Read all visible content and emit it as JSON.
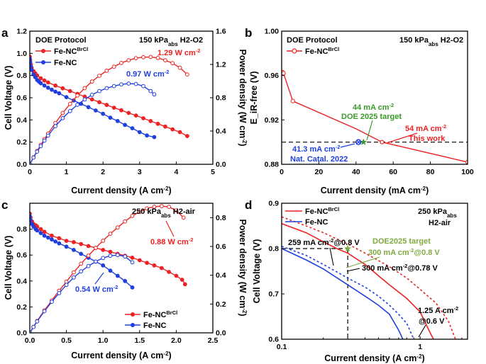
{
  "colors": {
    "red": "#ee2222",
    "blue": "#1f3fe0",
    "green": "#3a9a2a",
    "olive": "#7faa3f",
    "black": "#000000"
  },
  "chart_data": [
    {
      "panel": "a",
      "type": "line",
      "title": "DOE Protocol",
      "condition": {
        "pressure": "150 kPa",
        "sub": "abs",
        "gas": "H2-O2"
      },
      "xlabel": "Current density (A cm-2)",
      "ylabel": "Cell Voltage (V)",
      "y2label": "Power density (W cm-2)",
      "xlim": [
        0,
        5
      ],
      "ylim": [
        0,
        1.2
      ],
      "y2lim": [
        0,
        1.6
      ],
      "xticks": [
        "0",
        "1",
        "2",
        "3",
        "4",
        "5"
      ],
      "yticks": [
        "0.0",
        "0.2",
        "0.4",
        "0.6",
        "0.8",
        "1.0",
        "1.2"
      ],
      "y2ticks": [
        "0.0",
        "0.4",
        "0.8",
        "1.2",
        "1.6"
      ],
      "legend": [
        {
          "name": "Fe-NC",
          "sup": "BrCl",
          "color": "red"
        },
        {
          "name": "Fe-NC",
          "sup": "",
          "color": "blue"
        }
      ],
      "annotations": [
        {
          "text": "1.29 W cm-2",
          "color": "red"
        },
        {
          "text": "0.97 W cm-2",
          "color": "blue"
        }
      ],
      "series": [
        {
          "name": "Fe-NCBrCl voltage",
          "axis": "left",
          "color": "red",
          "filled": true,
          "x": [
            0,
            0.01,
            0.03,
            0.05,
            0.1,
            0.15,
            0.2,
            0.3,
            0.4,
            0.5,
            0.7,
            0.9,
            1.1,
            1.3,
            1.5,
            1.7,
            1.9,
            2.1,
            2.3,
            2.5,
            2.7,
            2.9,
            3.1,
            3.3,
            3.5,
            3.7,
            3.9,
            4.1,
            4.3
          ],
          "y": [
            0.97,
            0.94,
            0.9,
            0.87,
            0.84,
            0.82,
            0.8,
            0.775,
            0.755,
            0.738,
            0.71,
            0.685,
            0.66,
            0.635,
            0.61,
            0.585,
            0.56,
            0.535,
            0.51,
            0.487,
            0.463,
            0.44,
            0.415,
            0.39,
            0.365,
            0.34,
            0.315,
            0.29,
            0.255
          ]
        },
        {
          "name": "Fe-NC voltage",
          "axis": "left",
          "color": "blue",
          "filled": true,
          "x": [
            0,
            0.01,
            0.03,
            0.05,
            0.1,
            0.15,
            0.2,
            0.25,
            0.3,
            0.4,
            0.5,
            0.6,
            0.7,
            0.8,
            1.0,
            1.2,
            1.4,
            1.6,
            1.8,
            2.0,
            2.2,
            2.4,
            2.6,
            2.8,
            3.0,
            3.2,
            3.4
          ],
          "y": [
            0.95,
            0.92,
            0.88,
            0.85,
            0.81,
            0.785,
            0.76,
            0.745,
            0.73,
            0.71,
            0.69,
            0.672,
            0.655,
            0.64,
            0.605,
            0.575,
            0.545,
            0.515,
            0.485,
            0.455,
            0.42,
            0.39,
            0.355,
            0.325,
            0.29,
            0.26,
            0.245
          ]
        },
        {
          "name": "Fe-NCBrCl power",
          "axis": "right",
          "color": "red",
          "filled": false,
          "x": [
            0,
            0.1,
            0.2,
            0.3,
            0.4,
            0.5,
            0.7,
            0.9,
            1.1,
            1.3,
            1.5,
            1.7,
            1.9,
            2.1,
            2.3,
            2.5,
            2.7,
            2.9,
            3.1,
            3.3,
            3.5,
            3.7,
            3.9,
            4.1,
            4.3
          ],
          "y": [
            0,
            0.084,
            0.16,
            0.233,
            0.302,
            0.369,
            0.497,
            0.617,
            0.726,
            0.826,
            0.915,
            0.995,
            1.064,
            1.124,
            1.173,
            1.218,
            1.25,
            1.276,
            1.287,
            1.29,
            1.278,
            1.25,
            1.215,
            1.16,
            1.08
          ]
        },
        {
          "name": "Fe-NC power",
          "axis": "right",
          "color": "blue",
          "filled": false,
          "x": [
            0,
            0.1,
            0.2,
            0.3,
            0.4,
            0.5,
            0.7,
            0.9,
            1.1,
            1.3,
            1.5,
            1.7,
            1.9,
            2.1,
            2.3,
            2.5,
            2.7,
            2.9,
            3.1,
            3.3,
            3.4
          ],
          "y": [
            0,
            0.081,
            0.152,
            0.219,
            0.284,
            0.345,
            0.459,
            0.555,
            0.64,
            0.716,
            0.78,
            0.835,
            0.88,
            0.915,
            0.94,
            0.96,
            0.97,
            0.965,
            0.94,
            0.88,
            0.84
          ]
        }
      ]
    },
    {
      "panel": "b",
      "type": "line",
      "title": "DOE Protocol",
      "condition": {
        "pressure": "150 kPa",
        "sub": "abs",
        "gas": "H2-O2"
      },
      "xlabel": "Current density (mA cm-2)",
      "ylabel": "E_iR-free (V)",
      "xlim": [
        0,
        100
      ],
      "ylim": [
        0.88,
        1.0
      ],
      "xticks": [
        "0",
        "20",
        "40",
        "60",
        "80",
        "100"
      ],
      "yticks": [
        "0.88",
        "0.92",
        "0.96",
        "1.00"
      ],
      "reference_line_y": 0.9,
      "legend": [
        {
          "name": "Fe-NC",
          "sup": "BrCl",
          "color": "red"
        }
      ],
      "series": [
        {
          "name": "Fe-NCBrCl",
          "color": "red",
          "x": [
            0.5,
            1,
            6,
            40,
            54,
            100
          ],
          "y": [
            0.963,
            0.962,
            0.937,
            0.912,
            0.9,
            0.882
          ]
        }
      ],
      "points": [
        {
          "label": "44 mA cm-2 / DOE 2025 target",
          "x": 44,
          "y": 0.9,
          "marker": "star",
          "color": "green"
        },
        {
          "label": "41.3 mA cm-2 / Nat. Catal. 2022",
          "x": 41.3,
          "y": 0.9,
          "marker": "circle-x",
          "color": "blue"
        },
        {
          "label": "54 mA cm-2 / This work",
          "x": 54,
          "y": 0.9,
          "marker": "dot",
          "color": "red"
        }
      ],
      "annotations": [
        {
          "line1": "44 mA cm-2",
          "line2": "DOE 2025 target",
          "color": "green"
        },
        {
          "line1": "54 mA cm-2",
          "line2": "This work",
          "color": "red"
        },
        {
          "line1": "41.3 mA cm-2",
          "line2": "Nat. Catal. 2022",
          "color": "blue"
        }
      ]
    },
    {
      "panel": "c",
      "type": "line",
      "condition": {
        "pressure": "250 kPa",
        "sub": "abs",
        "gas": "H2-air"
      },
      "xlabel": "Current density (A cm-2)",
      "ylabel": "Cell Voltage (V)",
      "y2label": "Power density (W cm-2)",
      "xlim": [
        0,
        2.5
      ],
      "ylim": [
        0,
        1.0
      ],
      "y2lim": [
        0,
        0.9
      ],
      "xticks": [
        "0.0",
        "0.5",
        "1.0",
        "1.5",
        "2.0",
        "2.5"
      ],
      "yticks": [
        "0.0",
        "0.2",
        "0.4",
        "0.6",
        "0.8"
      ],
      "y2ticks": [
        "0.0",
        "0.2",
        "0.4",
        "0.6",
        "0.8"
      ],
      "legend": [
        {
          "name": "Fe-NC",
          "sup": "BrCl",
          "color": "red"
        },
        {
          "name": "Fe-NC",
          "sup": "",
          "color": "blue"
        }
      ],
      "annotations": [
        {
          "text": "0.88 W cm-2",
          "color": "red"
        },
        {
          "text": "0.54 W cm-2",
          "color": "blue"
        }
      ],
      "series": [
        {
          "name": "Fe-NCBrCl voltage",
          "axis": "left",
          "color": "red",
          "filled": true,
          "x": [
            0,
            0.01,
            0.03,
            0.05,
            0.08,
            0.1,
            0.15,
            0.2,
            0.3,
            0.4,
            0.5,
            0.6,
            0.7,
            0.8,
            0.9,
            1.0,
            1.1,
            1.2,
            1.3,
            1.4,
            1.5,
            1.6,
            1.7,
            1.8,
            1.9,
            2.0,
            2.08,
            2.12
          ],
          "y": [
            0.92,
            0.89,
            0.86,
            0.84,
            0.83,
            0.82,
            0.8,
            0.78,
            0.75,
            0.73,
            0.71,
            0.7,
            0.685,
            0.67,
            0.655,
            0.64,
            0.625,
            0.61,
            0.595,
            0.58,
            0.56,
            0.54,
            0.52,
            0.5,
            0.47,
            0.44,
            0.41,
            0.375
          ]
        },
        {
          "name": "Fe-NC voltage",
          "axis": "left",
          "color": "blue",
          "filled": true,
          "x": [
            0,
            0.01,
            0.03,
            0.05,
            0.08,
            0.1,
            0.15,
            0.2,
            0.25,
            0.3,
            0.35,
            0.4,
            0.5,
            0.6,
            0.7,
            0.8,
            0.9,
            1.0,
            1.1,
            1.2,
            1.3,
            1.4
          ],
          "y": [
            0.9,
            0.87,
            0.84,
            0.82,
            0.8,
            0.79,
            0.77,
            0.75,
            0.735,
            0.72,
            0.705,
            0.69,
            0.665,
            0.64,
            0.61,
            0.58,
            0.55,
            0.52,
            0.48,
            0.44,
            0.4,
            0.35
          ]
        },
        {
          "name": "Fe-NCBrCl power",
          "axis": "right",
          "color": "red",
          "filled": false,
          "x": [
            0,
            0.05,
            0.1,
            0.2,
            0.3,
            0.4,
            0.5,
            0.6,
            0.7,
            0.8,
            0.9,
            1.0,
            1.1,
            1.2,
            1.3,
            1.4,
            1.5,
            1.6,
            1.7,
            1.8,
            1.9,
            2.0,
            2.1
          ],
          "y": [
            0,
            0.042,
            0.082,
            0.156,
            0.225,
            0.292,
            0.355,
            0.42,
            0.48,
            0.536,
            0.59,
            0.64,
            0.688,
            0.732,
            0.774,
            0.812,
            0.84,
            0.864,
            0.876,
            0.88,
            0.875,
            0.85,
            0.8
          ]
        },
        {
          "name": "Fe-NC power",
          "axis": "right",
          "color": "blue",
          "filled": false,
          "x": [
            0,
            0.05,
            0.1,
            0.2,
            0.3,
            0.4,
            0.5,
            0.6,
            0.7,
            0.8,
            0.9,
            1.0,
            1.1,
            1.2,
            1.3,
            1.4
          ],
          "y": [
            0,
            0.041,
            0.079,
            0.15,
            0.216,
            0.276,
            0.333,
            0.384,
            0.427,
            0.464,
            0.495,
            0.52,
            0.535,
            0.54,
            0.53,
            0.49
          ]
        }
      ]
    },
    {
      "panel": "d",
      "type": "line",
      "xscale": "log",
      "condition": {
        "pressure": "250 kPa",
        "sub": "abs",
        "gas": "H2-air"
      },
      "xlabel": "Current density (A cm-2)",
      "ylabel": "Cell Voltage (V)",
      "xlim": [
        0.1,
        2.2
      ],
      "ylim": [
        0.6,
        0.9
      ],
      "xticks": [
        "0.1",
        "1"
      ],
      "yticks": [
        "0.6",
        "0.7",
        "0.8",
        "0.9"
      ],
      "reference_line_y": 0.8,
      "legend": [
        {
          "name": "Fe-NC",
          "sup": "BrCl",
          "color": "red"
        },
        {
          "name": "Fe-NC",
          "sup": "",
          "color": "blue"
        }
      ],
      "series": [
        {
          "name": "Fe-NCBrCl",
          "color": "red",
          "dash": false,
          "x": [
            0.1,
            0.15,
            0.2,
            0.25,
            0.3,
            0.4,
            0.5,
            0.6,
            0.8,
            1.0,
            1.2,
            1.25
          ],
          "y": [
            0.855,
            0.835,
            0.815,
            0.8,
            0.79,
            0.765,
            0.74,
            0.72,
            0.69,
            0.66,
            0.61,
            0.6
          ]
        },
        {
          "name": "Fe-NCBrCl (iR-free)",
          "color": "red",
          "dash": true,
          "x": [
            0.1,
            0.15,
            0.2,
            0.3,
            0.4,
            0.6,
            0.8,
            1.0,
            1.3,
            1.6,
            1.8
          ],
          "y": [
            0.87,
            0.85,
            0.835,
            0.81,
            0.79,
            0.76,
            0.735,
            0.71,
            0.68,
            0.64,
            0.6
          ]
        },
        {
          "name": "Fe-NC",
          "color": "blue",
          "dash": false,
          "x": [
            0.1,
            0.15,
            0.2,
            0.3,
            0.4,
            0.5,
            0.6,
            0.7,
            0.75
          ],
          "y": [
            0.8,
            0.775,
            0.755,
            0.72,
            0.695,
            0.675,
            0.655,
            0.62,
            0.6
          ]
        },
        {
          "name": "Fe-NC (iR-free)",
          "color": "blue",
          "dash": true,
          "x": [
            0.1,
            0.15,
            0.2,
            0.3,
            0.4,
            0.5,
            0.6,
            0.7,
            0.8,
            0.9
          ],
          "y": [
            0.805,
            0.785,
            0.765,
            0.735,
            0.715,
            0.695,
            0.675,
            0.655,
            0.635,
            0.6
          ]
        }
      ],
      "points": [
        {
          "label": "DOE2025 target",
          "x": 0.3,
          "y": 0.8,
          "marker": "star",
          "color": "olive"
        }
      ],
      "annotations": [
        {
          "text": "259 mA cm-2@0.8 V",
          "color": "black"
        },
        {
          "text": "DOE2025 target",
          "color": "olive"
        },
        {
          "text": "300 mA cm-2@0.8 V",
          "color": "olive"
        },
        {
          "text": "300 mA cm-2@0.78 V",
          "color": "black"
        },
        {
          "line1": "1.25 A cm-2",
          "line2": "@0.6 V",
          "color": "black"
        }
      ]
    }
  ]
}
